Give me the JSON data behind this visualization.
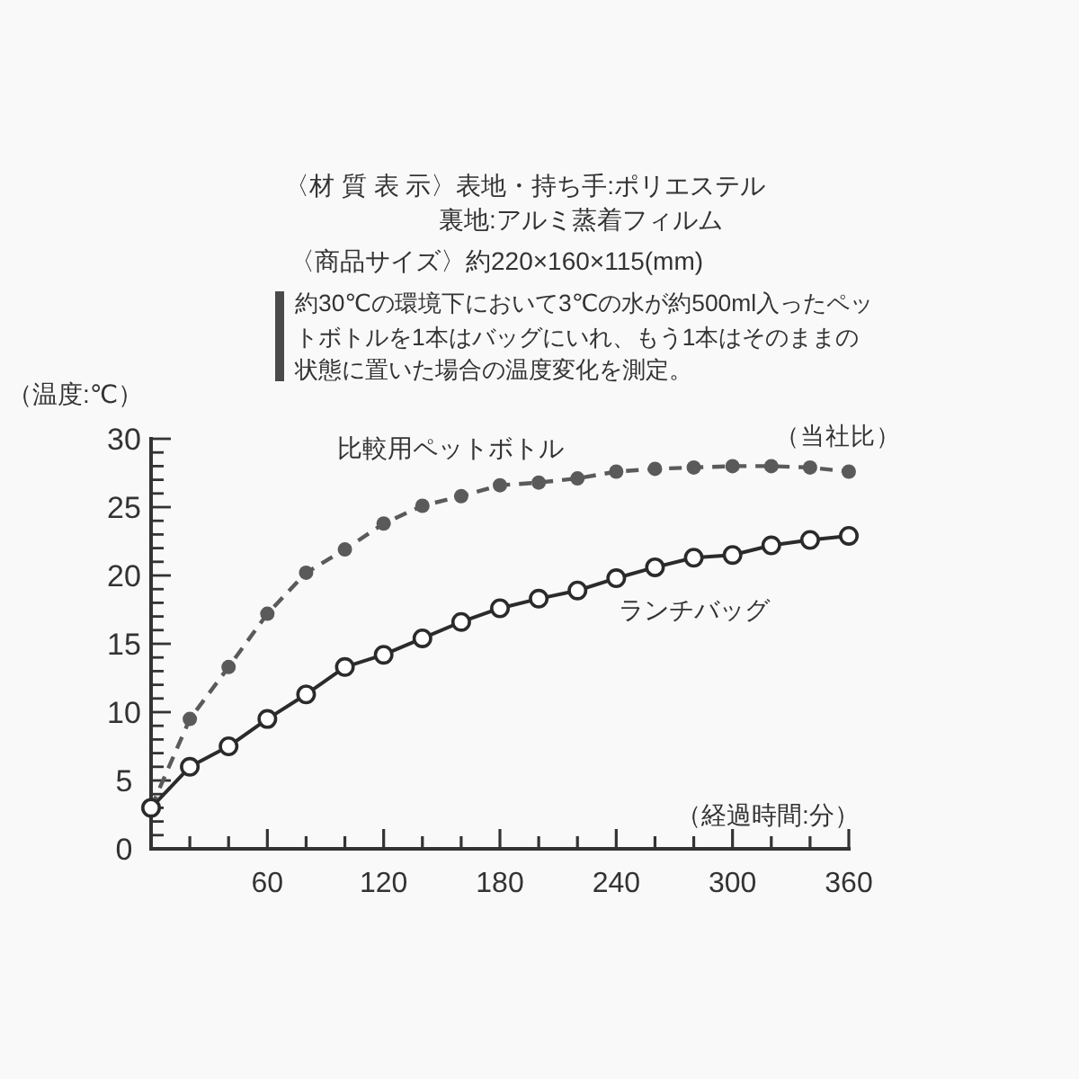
{
  "chart_data": {
    "type": "line",
    "ylabel": "（温度:℃）",
    "xlabel": "（経過時間:分）",
    "annotations": [
      "〈材 質 表 示〉表地・持ち手:ポリエステル",
      "裏地:アルミ蒸着フィルム",
      "〈商品サイズ〉約220×160×115(mm)",
      "約30℃の環境下において3℃の水が約500ml入ったペットボトルを1本はバッグにいれ、もう1本はそのままの状態に置いた場合の温度変化を測定。",
      "（当社比）"
    ],
    "x": [
      0,
      20,
      40,
      60,
      80,
      100,
      120,
      140,
      160,
      180,
      200,
      220,
      240,
      260,
      280,
      300,
      320,
      340,
      360
    ],
    "series": [
      {
        "name": "比較用ペットボトル",
        "color": "#5a5a5a",
        "line_style": "dashed",
        "marker": "circle",
        "values": [
          3,
          9.5,
          13.3,
          17.2,
          20.2,
          21.9,
          23.8,
          25.1,
          25.8,
          26.6,
          26.8,
          27.1,
          27.6,
          27.8,
          27.9,
          28,
          28,
          27.9,
          27.6
        ]
      },
      {
        "name": "ランチバッグ",
        "color": "#2b2b2b",
        "line_style": "solid",
        "marker": "circle",
        "values": [
          3,
          6,
          7.5,
          9.5,
          11.3,
          13.3,
          14.2,
          15.4,
          16.6,
          17.6,
          18.3,
          18.9,
          19.8,
          20.6,
          21.3,
          21.5,
          22.2,
          22.6,
          22.9
        ]
      }
    ],
    "xlim": [
      0,
      360
    ],
    "ylim": [
      0,
      30
    ],
    "xticks": [
      {
        "value": 20,
        "label": null
      },
      {
        "value": 40,
        "label": null
      },
      60,
      {
        "value": 80,
        "label": null
      },
      {
        "value": 100,
        "label": null
      },
      120,
      {
        "value": 140,
        "label": null
      },
      {
        "value": 160,
        "label": null
      },
      180,
      {
        "value": 200,
        "label": null
      },
      {
        "value": 220,
        "label": null
      },
      240,
      {
        "value": 260,
        "label": null
      },
      {
        "value": 280,
        "label": null
      },
      300,
      {
        "value": 320,
        "label": null
      },
      {
        "value": 340,
        "label": null
      },
      360
    ],
    "yticks": [
      0,
      {
        "value": 1,
        "label": null
      },
      {
        "value": 2,
        "label": null
      },
      {
        "value": 3,
        "label": null
      },
      {
        "value": 4,
        "label": null
      },
      5,
      {
        "value": 6,
        "label": null
      },
      {
        "value": 7,
        "label": null
      },
      {
        "value": 8,
        "label": null
      },
      {
        "value": 9,
        "label": null
      },
      10,
      {
        "value": 11,
        "label": null
      },
      {
        "value": 12,
        "label": null
      },
      {
        "value": 13,
        "label": null
      },
      {
        "value": 14,
        "label": null
      },
      15,
      {
        "value": 16,
        "label": null
      },
      {
        "value": 17,
        "label": null
      },
      {
        "value": 18,
        "label": null
      },
      {
        "value": 19,
        "label": null
      },
      20,
      {
        "value": 21,
        "label": null
      },
      {
        "value": 22,
        "label": null
      },
      {
        "value": 23,
        "label": null
      },
      {
        "value": 24,
        "label": null
      },
      25,
      {
        "value": 26,
        "label": null
      },
      {
        "value": 27,
        "label": null
      },
      {
        "value": 28,
        "label": null
      },
      {
        "value": 29,
        "label": null
      },
      30
    ],
    "grid": false,
    "legend": false
  }
}
